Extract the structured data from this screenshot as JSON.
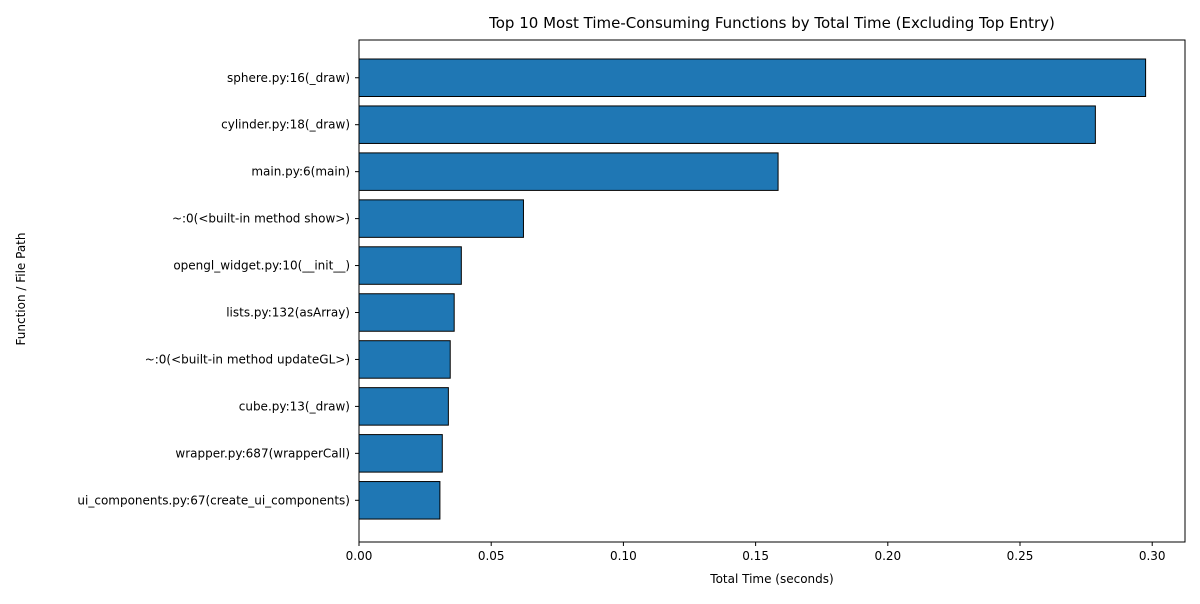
{
  "chart_data": {
    "type": "bar",
    "orientation": "horizontal",
    "title": "Top 10 Most Time-Consuming Functions by Total Time (Excluding Top Entry)",
    "xlabel": "Total Time (seconds)",
    "ylabel": "Function / File Path",
    "categories": [
      "sphere.py:16(_draw)",
      "cylinder.py:18(_draw)",
      "main.py:6(main)",
      "~:0(<built-in method show>)",
      "opengl_widget.py:10(__init__)",
      "lists.py:132(asArray)",
      "~:0(<built-in method updateGL>)",
      "cube.py:13(_draw)",
      "wrapper.py:687(wrapperCall)",
      "ui_components.py:67(create_ui_components)"
    ],
    "values": [
      0.2975,
      0.2785,
      0.1585,
      0.0622,
      0.0387,
      0.036,
      0.0345,
      0.0338,
      0.0315,
      0.0306
    ],
    "xlim": [
      0,
      0.3124
    ],
    "xticks": [
      0.0,
      0.05,
      0.1,
      0.15,
      0.2,
      0.25,
      0.3
    ],
    "xtick_labels": [
      "0.00",
      "0.05",
      "0.10",
      "0.15",
      "0.20",
      "0.25",
      "0.30"
    ],
    "bar_color": "#1f77b4",
    "edge_color": "#000000",
    "grid": false,
    "legend": "none"
  }
}
